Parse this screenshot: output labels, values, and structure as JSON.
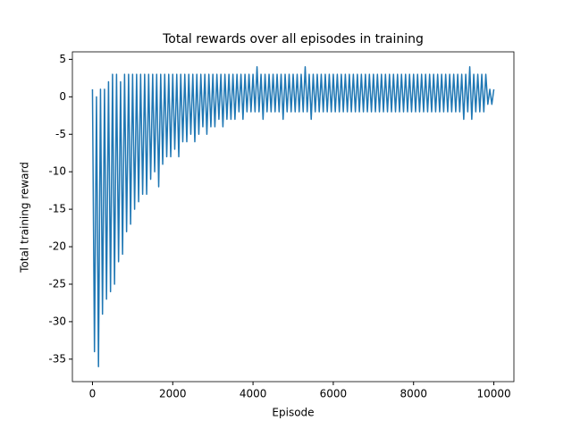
{
  "chart_data": {
    "type": "line",
    "title": "Total rewards over all episodes in training",
    "x_label": "Episode",
    "y_label": "Total training reward",
    "xlim": [
      -500,
      10500
    ],
    "ylim": [
      -38,
      6
    ],
    "xticks": [
      0,
      2000,
      4000,
      6000,
      8000,
      10000
    ],
    "yticks": [
      -35,
      -30,
      -25,
      -20,
      -15,
      -10,
      -5,
      0,
      5
    ],
    "grid": false,
    "x": [
      0,
      50,
      100,
      150,
      200,
      250,
      300,
      350,
      400,
      450,
      500,
      550,
      600,
      650,
      700,
      750,
      800,
      850,
      900,
      950,
      1000,
      1050,
      1100,
      1150,
      1200,
      1250,
      1300,
      1350,
      1400,
      1450,
      1500,
      1550,
      1600,
      1650,
      1700,
      1750,
      1800,
      1850,
      1900,
      1950,
      2000,
      2050,
      2100,
      2150,
      2200,
      2250,
      2300,
      2350,
      2400,
      2450,
      2500,
      2550,
      2600,
      2650,
      2700,
      2750,
      2800,
      2850,
      2900,
      2950,
      3000,
      3050,
      3100,
      3150,
      3200,
      3250,
      3300,
      3350,
      3400,
      3450,
      3500,
      3550,
      3600,
      3650,
      3700,
      3750,
      3800,
      3850,
      3900,
      3950,
      4000,
      4050,
      4100,
      4150,
      4200,
      4250,
      4300,
      4350,
      4400,
      4450,
      4500,
      4550,
      4600,
      4650,
      4700,
      4750,
      4800,
      4850,
      4900,
      4950,
      5000,
      5050,
      5100,
      5150,
      5200,
      5250,
      5300,
      5350,
      5400,
      5450,
      5500,
      5550,
      5600,
      5650,
      5700,
      5750,
      5800,
      5850,
      5900,
      5950,
      6000,
      6050,
      6100,
      6150,
      6200,
      6250,
      6300,
      6350,
      6400,
      6450,
      6500,
      6550,
      6600,
      6650,
      6700,
      6750,
      6800,
      6850,
      6900,
      6950,
      7000,
      7050,
      7100,
      7150,
      7200,
      7250,
      7300,
      7350,
      7400,
      7450,
      7500,
      7550,
      7600,
      7650,
      7700,
      7750,
      7800,
      7850,
      7900,
      7950,
      8000,
      8050,
      8100,
      8150,
      8200,
      8250,
      8300,
      8350,
      8400,
      8450,
      8500,
      8550,
      8600,
      8650,
      8700,
      8750,
      8800,
      8850,
      8900,
      8950,
      9000,
      9050,
      9100,
      9150,
      9200,
      9250,
      9300,
      9350,
      9400,
      9450,
      9500,
      9550,
      9600,
      9650,
      9700,
      9750,
      9800,
      9850,
      9900,
      9950,
      10000
    ],
    "series": [
      {
        "color": "#1f77b4",
        "values": [
          1,
          -34,
          0,
          -36,
          1,
          -29,
          1,
          -27,
          2,
          -26,
          3,
          -25,
          3,
          -22,
          2,
          -21,
          3,
          -18,
          3,
          -17,
          3,
          -15,
          3,
          -14,
          3,
          -13,
          3,
          -13,
          3,
          -11,
          3,
          -10,
          3,
          -12,
          3,
          -9,
          3,
          -8,
          3,
          -8,
          3,
          -7,
          3,
          -8,
          3,
          -6,
          3,
          -6,
          3,
          -5,
          3,
          -6,
          3,
          -5,
          3,
          -4,
          3,
          -5,
          3,
          -4,
          3,
          -4,
          3,
          -3,
          3,
          -4,
          3,
          -3,
          3,
          -3,
          3,
          -3,
          3,
          -2,
          3,
          -3,
          3,
          -2,
          3,
          -2,
          3,
          -2,
          4,
          -2,
          3,
          -3,
          3,
          -2,
          3,
          -2,
          3,
          -2,
          3,
          -2,
          3,
          -3,
          3,
          -2,
          3,
          -2,
          3,
          -2,
          3,
          -2,
          3,
          -2,
          4,
          -2,
          3,
          -3,
          3,
          -2,
          3,
          -2,
          3,
          -2,
          3,
          -2,
          3,
          -2,
          3,
          -2,
          3,
          -2,
          3,
          -2,
          3,
          -2,
          3,
          -2,
          3,
          -2,
          3,
          -2,
          3,
          -2,
          3,
          -2,
          3,
          -2,
          3,
          -2,
          3,
          -2,
          3,
          -2,
          3,
          -2,
          3,
          -2,
          3,
          -2,
          3,
          -2,
          3,
          -2,
          3,
          -2,
          3,
          -2,
          3,
          -2,
          3,
          -2,
          3,
          -2,
          3,
          -2,
          3,
          -2,
          3,
          -2,
          3,
          -2,
          3,
          -2,
          3,
          -2,
          3,
          -2,
          3,
          -2,
          3,
          -2,
          3,
          -3,
          3,
          -2,
          4,
          -3,
          3,
          -2,
          3,
          -2,
          3,
          -2,
          3,
          -1,
          1,
          -1,
          1
        ]
      }
    ]
  }
}
